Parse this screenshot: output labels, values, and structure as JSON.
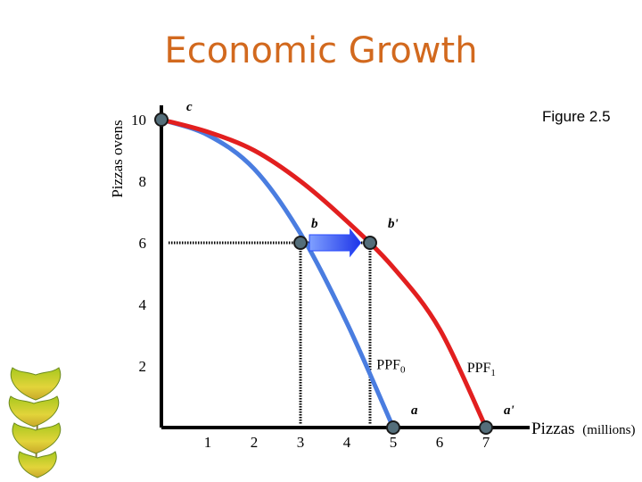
{
  "title": "Economic Growth",
  "figure_label": "Figure 2.5",
  "decoration": {
    "ginkgo_leaves": "ginkgo-leaf-icon"
  },
  "chart_data": {
    "type": "line",
    "title": "Economic Growth",
    "xlabel": "Pizzas",
    "xlabel_unit": "(millions)",
    "ylabel": "Pizzas ovens",
    "x_ticks": [
      1,
      2,
      3,
      4,
      5,
      6,
      7
    ],
    "y_ticks": [
      2,
      4,
      6,
      8,
      10
    ],
    "xlim": [
      0,
      8
    ],
    "ylim": [
      0,
      10
    ],
    "series": [
      {
        "name": "PPF0",
        "label_main": "PPF",
        "label_sub": "0",
        "color": "#4a7de0",
        "points": [
          [
            0,
            10
          ],
          [
            1,
            9.5
          ],
          [
            2,
            8.4
          ],
          [
            3,
            6.3
          ],
          [
            4,
            3.4
          ],
          [
            5,
            0
          ]
        ]
      },
      {
        "name": "PPF1",
        "label_main": "PPF",
        "label_sub": "1",
        "color": "#e21f1f",
        "points": [
          [
            0,
            10
          ],
          [
            1,
            9.6
          ],
          [
            2,
            9.0
          ],
          [
            3,
            8.0
          ],
          [
            4,
            6.7
          ],
          [
            5,
            5.2
          ],
          [
            6,
            3.2
          ],
          [
            7,
            0
          ]
        ]
      }
    ],
    "points": [
      {
        "label": "c",
        "x": 0,
        "y": 10
      },
      {
        "label": "b",
        "x": 3,
        "y": 6
      },
      {
        "label": "b'",
        "x": 4.5,
        "y": 6
      },
      {
        "label": "a",
        "x": 5,
        "y": 0
      },
      {
        "label": "a'",
        "x": 7,
        "y": 0
      }
    ],
    "arrow": {
      "from": [
        3,
        6
      ],
      "to": [
        4.3,
        6
      ],
      "color": "#2a4bff"
    },
    "guides": [
      {
        "x": 3,
        "y": 6
      },
      {
        "x": 4.5,
        "y": 6
      }
    ],
    "grid": false,
    "legend": "none"
  }
}
